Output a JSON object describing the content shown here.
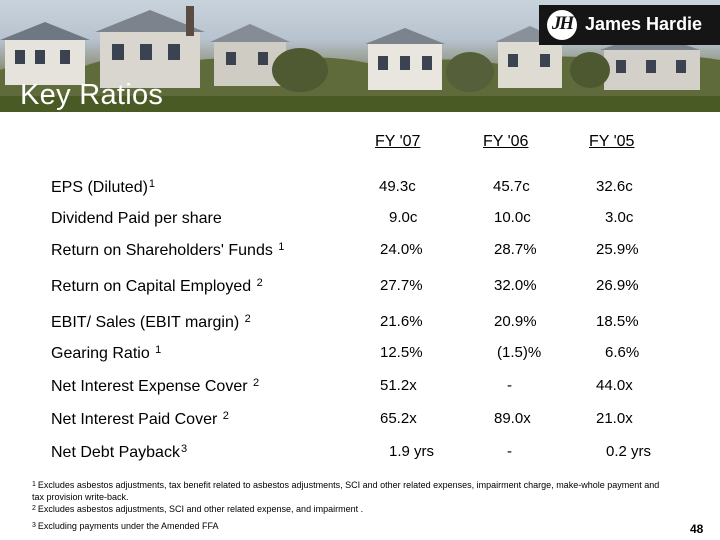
{
  "brand": {
    "name": "James Hardie",
    "mark": "JH"
  },
  "title": "Key Ratios",
  "columns": [
    "FY '07",
    "FY '06",
    "FY '05"
  ],
  "rows": [
    {
      "label": "EPS (Diluted)",
      "sup": "1",
      "values": [
        "49.3c",
        "45.7c",
        "32.6c"
      ]
    },
    {
      "label": "Dividend Paid per share",
      "sup": "",
      "values": [
        "9.0c",
        "10.0c",
        "3.0c"
      ]
    },
    {
      "label": "Return on Shareholders' Funds ",
      "sup": "1",
      "values": [
        "24.0%",
        "28.7%",
        "25.9%"
      ]
    },
    {
      "label": "Return on Capital Employed ",
      "sup": "2",
      "values": [
        "27.7%",
        "32.0%",
        "26.9%"
      ]
    },
    {
      "label": "EBIT/ Sales (EBIT margin) ",
      "sup": "2",
      "values": [
        "21.6%",
        "20.9%",
        "18.5%"
      ]
    },
    {
      "label": "Gearing Ratio ",
      "sup": "1",
      "values": [
        "12.5%",
        "(1.5)%",
        "6.6%"
      ]
    },
    {
      "label": "Net Interest Expense Cover ",
      "sup": "2",
      "values": [
        "51.2x",
        "-",
        "44.0x"
      ]
    },
    {
      "label": "Net Interest Paid Cover ",
      "sup": "2",
      "values": [
        "65.2x",
        "89.0x",
        "21.0x"
      ]
    },
    {
      "label": "Net Debt Payback",
      "sup": "3",
      "values": [
        "1.9 yrs",
        "-",
        "0.2 yrs"
      ]
    }
  ],
  "footnotes": [
    {
      "num": "1",
      "text": "Excludes asbestos adjustments, tax benefit related to asbestos adjustments, SCI and other related expenses, impairment charge, make-whole payment and tax provision write-back."
    },
    {
      "num": "2",
      "text": "Excludes asbestos adjustments, SCI and other related expense, and impairment ."
    },
    {
      "num": "3",
      "text": "Excluding payments under the Amended FFA"
    }
  ],
  "page_number": "48"
}
